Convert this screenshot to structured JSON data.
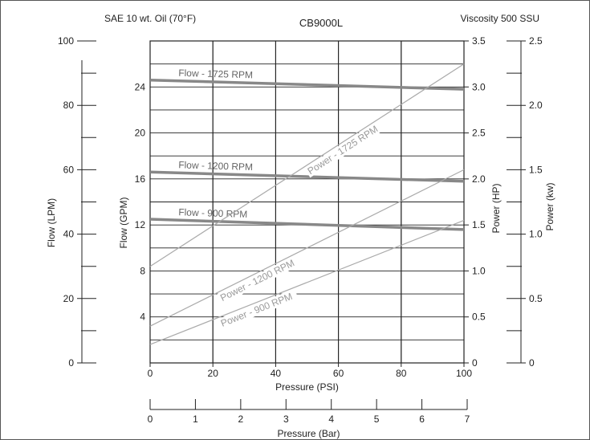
{
  "header": {
    "left": "SAE 10 wt. Oil (70°F)",
    "title": "CB9000L",
    "right": "Viscosity 500 SSU"
  },
  "colors": {
    "flow_line": "#888888",
    "power_line": "#aaaaaa",
    "grid": "#222222"
  },
  "chart_data": {
    "type": "line",
    "title": "CB9000L",
    "x": {
      "label": "Pressure (PSI)",
      "range": [
        0,
        100
      ],
      "ticks": [
        0,
        20,
        40,
        60,
        80,
        100
      ]
    },
    "x2": {
      "label": "Pressure (Bar)",
      "range": [
        0,
        7
      ],
      "ticks": [
        0,
        1,
        2,
        3,
        4,
        5,
        6,
        7
      ]
    },
    "y_gpm": {
      "label": "Flow (GPM)",
      "range": [
        0,
        28
      ],
      "ticks": [
        0,
        4,
        8,
        12,
        16,
        20,
        24
      ]
    },
    "y_lpm": {
      "label": "Flow (LPM)",
      "range": [
        0,
        100
      ],
      "ticks": [
        0,
        20,
        40,
        60,
        80,
        100
      ]
    },
    "y_hp": {
      "label": "Power (HP)",
      "range": [
        0,
        3.5
      ],
      "ticks": [
        0,
        0.5,
        1.0,
        1.5,
        2.0,
        2.5,
        3.0,
        3.5
      ],
      "tick_labels": [
        "0",
        "0.5",
        "1.0",
        "1.5",
        "2.0",
        "2.5",
        "3.0",
        "3.5"
      ]
    },
    "y_kw": {
      "label": "Power (kw)",
      "range": [
        0,
        2.5
      ],
      "ticks": [
        0,
        0.5,
        1.0,
        1.5,
        2.0,
        2.5
      ],
      "tick_labels": [
        "0",
        "0.5",
        "1.0",
        "1.5",
        "2.0",
        "2.5"
      ]
    },
    "grid": true,
    "series": [
      {
        "name": "Flow - 1725 RPM",
        "axis": "gpm",
        "kind": "flow",
        "x": [
          0,
          100
        ],
        "y": [
          24.6,
          23.8
        ]
      },
      {
        "name": "Flow - 1200 RPM",
        "axis": "gpm",
        "kind": "flow",
        "x": [
          0,
          100
        ],
        "y": [
          16.6,
          15.8
        ]
      },
      {
        "name": "Flow - 900 RPM",
        "axis": "gpm",
        "kind": "flow",
        "x": [
          0,
          100
        ],
        "y": [
          12.5,
          11.6
        ]
      },
      {
        "name": "Power - 1725 RPM",
        "axis": "hp",
        "kind": "power",
        "x": [
          0,
          100
        ],
        "y": [
          1.05,
          3.25
        ]
      },
      {
        "name": "Power - 1200 RPM",
        "axis": "hp",
        "kind": "power",
        "x": [
          0,
          100
        ],
        "y": [
          0.4,
          2.1
        ]
      },
      {
        "name": "Power - 900 RPM",
        "axis": "hp",
        "kind": "power",
        "x": [
          0,
          100
        ],
        "y": [
          0.2,
          1.55
        ]
      }
    ]
  }
}
